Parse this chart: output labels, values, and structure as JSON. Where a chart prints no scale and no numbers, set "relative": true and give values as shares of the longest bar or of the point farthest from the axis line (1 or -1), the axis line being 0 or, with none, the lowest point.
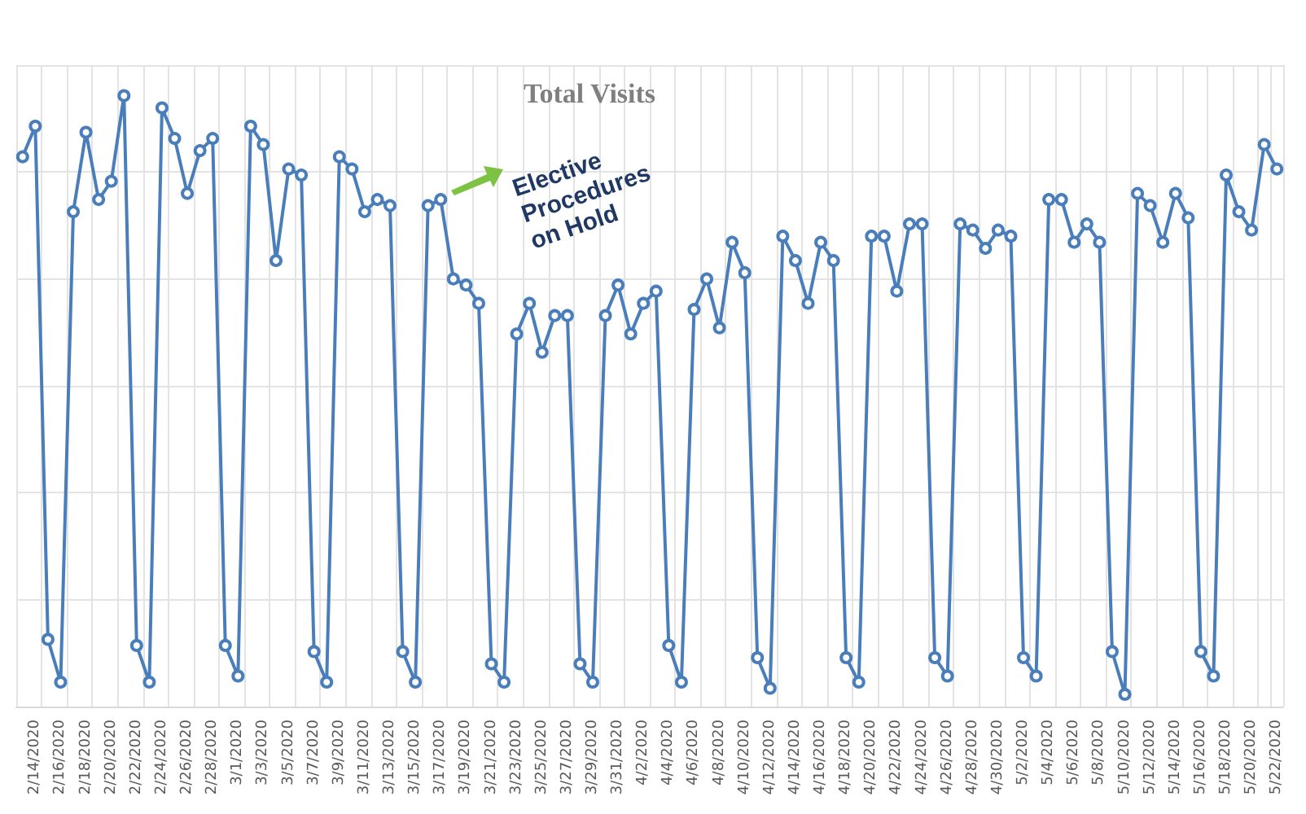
{
  "chart_data": {
    "type": "line",
    "title": "Total Visits",
    "relative": true,
    "grid": true,
    "marker": "circle",
    "line_style": "solid",
    "categories": [
      null,
      "2/14/2020",
      null,
      "2/16/2020",
      null,
      "2/18/2020",
      null,
      "2/20/2020",
      null,
      "2/22/2020",
      null,
      "2/24/2020",
      null,
      "2/26/2020",
      null,
      "2/28/2020",
      null,
      "3/1/2020",
      null,
      "3/3/2020",
      null,
      "3/5/2020",
      null,
      "3/7/2020",
      null,
      "3/9/2020",
      null,
      "3/11/2020",
      null,
      "3/13/2020",
      null,
      "3/15/2020",
      null,
      "3/17/2020",
      null,
      "3/19/2020",
      null,
      "3/21/2020",
      null,
      "3/23/2020",
      null,
      "3/25/2020",
      null,
      "3/27/2020",
      null,
      "3/29/2020",
      null,
      "3/31/2020",
      null,
      "4/2/2020",
      null,
      "4/4/2020",
      null,
      "4/6/2020",
      null,
      "4/8/2020",
      null,
      "4/10/2020",
      null,
      "4/12/2020",
      null,
      "4/14/2020",
      null,
      "4/16/2020",
      null,
      "4/18/2020",
      null,
      "4/20/2020",
      null,
      "4/22/2020",
      null,
      "4/24/2020",
      null,
      "4/26/2020",
      null,
      "4/28/2020",
      null,
      "4/30/2020",
      null,
      "5/2/2020",
      null,
      "5/4/2020",
      null,
      "5/6/2020",
      null,
      "5/8/2020",
      null,
      "5/10/2020",
      null,
      "5/12/2020",
      null,
      "5/14/2020",
      null,
      "5/16/2020",
      null,
      "5/18/2020",
      null,
      "5/20/2020",
      null,
      "5/22/2020"
    ],
    "series": [
      {
        "color": "#4a7ebb",
        "values": [
          0.9,
          0.95,
          0.11,
          0.04,
          0.81,
          0.94,
          0.83,
          0.86,
          1.0,
          0.1,
          0.04,
          0.98,
          0.93,
          0.84,
          0.91,
          0.93,
          0.1,
          0.05,
          0.95,
          0.92,
          0.73,
          0.88,
          0.87,
          0.09,
          0.04,
          0.9,
          0.88,
          0.81,
          0.83,
          0.82,
          0.09,
          0.04,
          0.82,
          0.83,
          0.7,
          0.69,
          0.66,
          0.07,
          0.04,
          0.61,
          0.66,
          0.58,
          0.64,
          0.64,
          0.07,
          0.04,
          0.64,
          0.69,
          0.61,
          0.66,
          0.68,
          0.1,
          0.04,
          0.65,
          0.7,
          0.62,
          0.76,
          0.71,
          0.08,
          0.03,
          0.77,
          0.73,
          0.66,
          0.76,
          0.73,
          0.08,
          0.04,
          0.77,
          0.77,
          0.68,
          0.79,
          0.79,
          0.08,
          0.05,
          0.79,
          0.78,
          0.75,
          0.78,
          0.77,
          0.08,
          0.05,
          0.83,
          0.83,
          0.76,
          0.79,
          0.76,
          0.09,
          0.02,
          0.84,
          0.82,
          0.76,
          0.84,
          0.8,
          0.09,
          0.05,
          0.87,
          0.81,
          0.78,
          0.92,
          0.88
        ]
      }
    ],
    "annotations": [
      {
        "text": "Elective Procedures on Hold",
        "x": "3/17/2020",
        "y": 0.83
      }
    ]
  }
}
